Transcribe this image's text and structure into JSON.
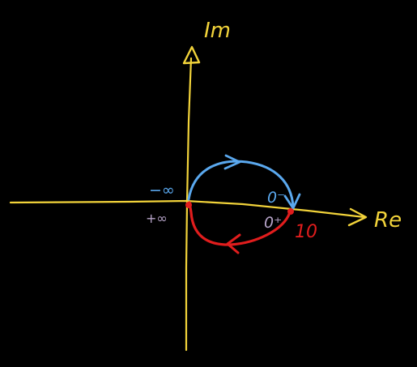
{
  "diagram": {
    "axes": {
      "imag_label": "Im",
      "real_label": "Re"
    },
    "annotations": {
      "minus_infinity": "−∞",
      "plus_infinity": "+∞",
      "zero_minus": "0⁻",
      "zero_plus": "0⁺",
      "point_value": "10"
    },
    "colors": {
      "background": "#000000",
      "axes": "#f2d33a",
      "upper_branch": "#5aa8ee",
      "lower_branch": "#e11d1d",
      "plus_infinity_label": "#b7a4c9"
    },
    "points": {
      "origin_real": 0,
      "critical_real": 10
    }
  }
}
